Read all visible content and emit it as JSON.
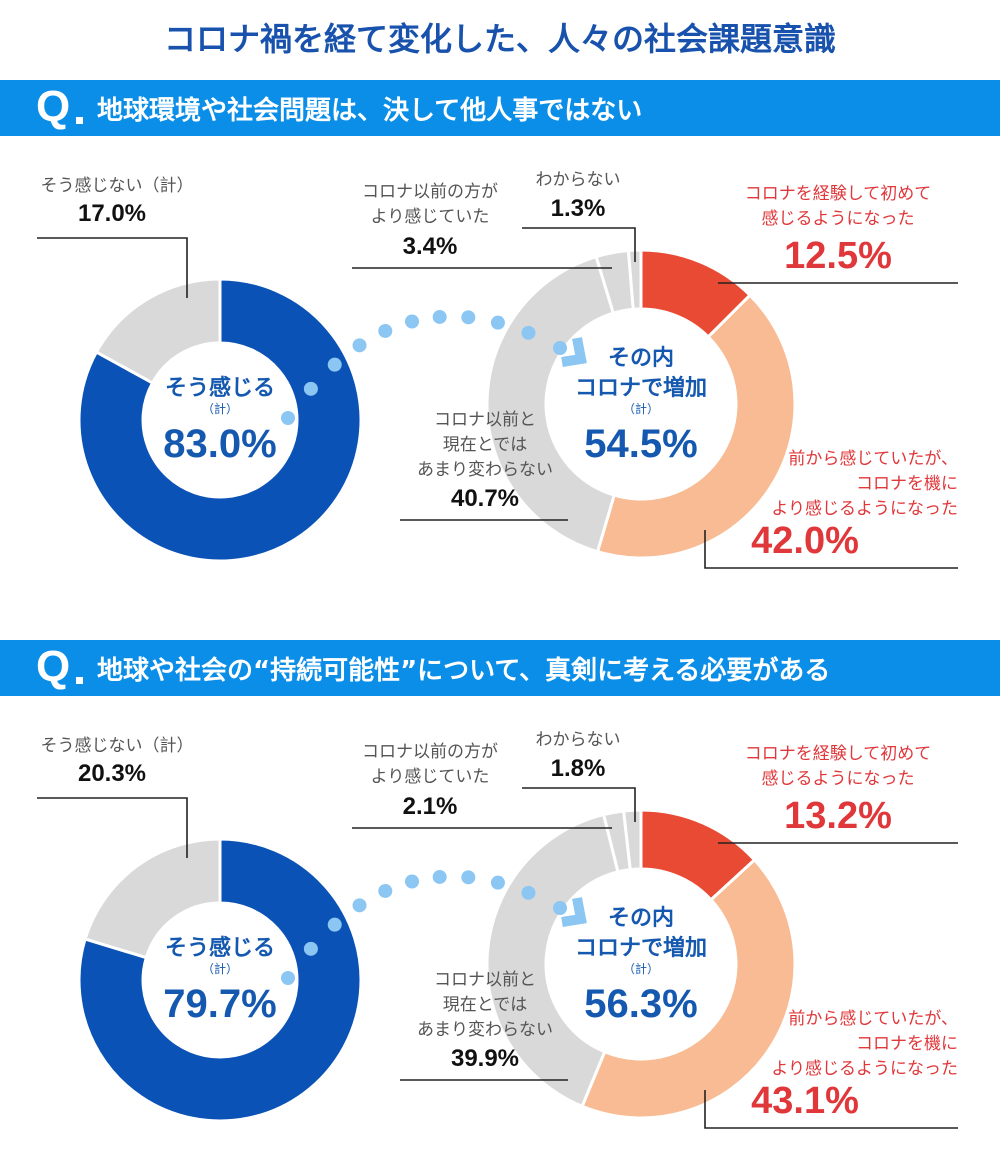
{
  "title": "コロナ禍を経て変化した、人々の社会課題意識",
  "colors": {
    "banner": "#0b8ee8",
    "blue": "#0a52b5",
    "red": "#e84a33",
    "peach": "#f8bb93",
    "gray": "#d9d9d9",
    "dots": "#8cc6f2",
    "red_text": "#e0373a"
  },
  "icons": {
    "question_marker": "Q-letter",
    "connector": "dotted-arrow"
  },
  "chart_data": [
    {
      "type": "pie",
      "question_marker": "Q",
      "question": "地球環境や社会問題は、決して他人事ではない",
      "left": {
        "center_label": "そう感じる",
        "center_sub": "（計）",
        "center_value": "83.0%",
        "slices": [
          {
            "label": "そう感じる（計）",
            "value": 83.0,
            "color": "#0a52b5"
          },
          {
            "label": "そう感じない（計）",
            "value": 17.0,
            "color": "#d9d9d9",
            "display": "17.0%"
          }
        ]
      },
      "right": {
        "center_label_1": "その内",
        "center_label_2": "コロナで増加",
        "center_sub": "（計）",
        "center_value": "54.5%",
        "slices": [
          {
            "label": "コロナを経験して初めて感じるようになった",
            "label_lines": [
              "コロナを経験して初めて",
              "感じるようになった"
            ],
            "value": 12.5,
            "display": "12.5%",
            "color": "#e84a33"
          },
          {
            "label": "前から感じていたが、コロナを機により感じるようになった",
            "label_lines": [
              "前から感じていたが、",
              "コロナを機に",
              "より感じるようになった"
            ],
            "value": 42.0,
            "display": "42.0%",
            "color": "#f8bb93"
          },
          {
            "label": "コロナ以前と現在とではあまり変わらない",
            "label_lines": [
              "コロナ以前と",
              "現在とでは",
              "あまり変わらない"
            ],
            "value": 40.7,
            "display": "40.7%",
            "color": "#d9d9d9"
          },
          {
            "label": "コロナ以前の方がより感じていた",
            "label_lines": [
              "コロナ以前の方が",
              "より感じていた"
            ],
            "value": 3.4,
            "display": "3.4%",
            "color": "#d9d9d9"
          },
          {
            "label": "わからない",
            "label_lines": [
              "わからない"
            ],
            "value": 1.3,
            "display": "1.3%",
            "color": "#d9d9d9"
          }
        ]
      }
    },
    {
      "type": "pie",
      "question_marker": "Q",
      "question": "地球や社会の“持続可能性”について、真剣に考える必要がある",
      "left": {
        "center_label": "そう感じる",
        "center_sub": "（計）",
        "center_value": "79.7%",
        "slices": [
          {
            "label": "そう感じる（計）",
            "value": 79.7,
            "color": "#0a52b5"
          },
          {
            "label": "そう感じない（計）",
            "value": 20.3,
            "color": "#d9d9d9",
            "display": "20.3%"
          }
        ]
      },
      "right": {
        "center_label_1": "その内",
        "center_label_2": "コロナで増加",
        "center_sub": "（計）",
        "center_value": "56.3%",
        "slices": [
          {
            "label": "コロナを経験して初めて感じるようになった",
            "label_lines": [
              "コロナを経験して初めて",
              "感じるようになった"
            ],
            "value": 13.2,
            "display": "13.2%",
            "color": "#e84a33"
          },
          {
            "label": "前から感じていたが、コロナを機により感じるようになった",
            "label_lines": [
              "前から感じていたが、",
              "コロナを機に",
              "より感じるようになった"
            ],
            "value": 43.1,
            "display": "43.1%",
            "color": "#f8bb93"
          },
          {
            "label": "コロナ以前と現在とではあまり変わらない",
            "label_lines": [
              "コロナ以前と",
              "現在とでは",
              "あまり変わらない"
            ],
            "value": 39.9,
            "display": "39.9%",
            "color": "#d9d9d9"
          },
          {
            "label": "コロナ以前の方がより感じていた",
            "label_lines": [
              "コロナ以前の方が",
              "より感じていた"
            ],
            "value": 2.1,
            "display": "2.1%",
            "color": "#d9d9d9"
          },
          {
            "label": "わからない",
            "label_lines": [
              "わからない"
            ],
            "value": 1.8,
            "display": "1.8%",
            "color": "#d9d9d9"
          }
        ]
      }
    }
  ]
}
